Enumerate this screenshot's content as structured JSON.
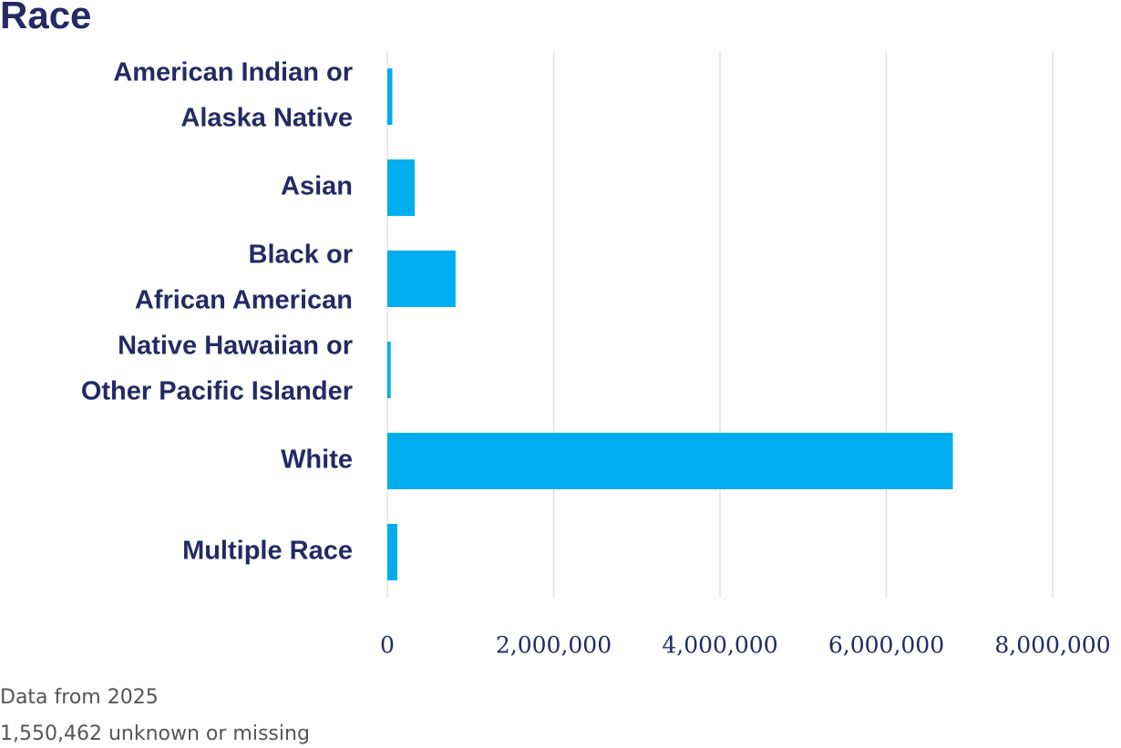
{
  "chart_data": {
    "type": "bar",
    "orientation": "horizontal",
    "title": "Race",
    "categories": [
      [
        "American Indian or",
        "Alaska Native"
      ],
      [
        "Asian"
      ],
      [
        "Black or",
        "African American"
      ],
      [
        "Native Hawaiian or",
        "Other Pacific Islander"
      ],
      [
        "White"
      ],
      [
        "Multiple Race"
      ]
    ],
    "values": [
      60000,
      330000,
      820000,
      40000,
      6800000,
      120000
    ],
    "color": "#00aeef",
    "xlim": [
      0,
      8000000
    ],
    "xticks": [
      0,
      {
        "value": 2000000,
        "label": "2,000,000"
      },
      {
        "value": 4000000,
        "label": "4,000,000"
      },
      {
        "value": 6000000,
        "label": "6,000,000"
      },
      {
        "value": 8000000,
        "label": "8,000,000"
      }
    ],
    "grid": true,
    "notes": [
      "Data from 2025",
      "1,550,462 unknown or missing"
    ]
  }
}
